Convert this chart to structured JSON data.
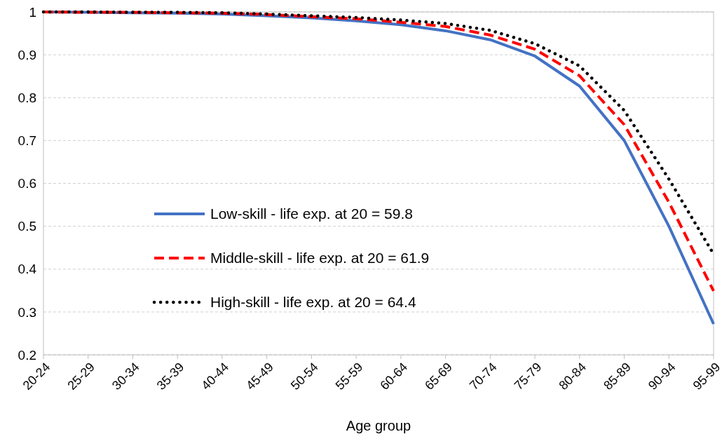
{
  "chart_data": {
    "type": "line",
    "xlabel": "Age group",
    "categories": [
      "20-24",
      "25-29",
      "30-34",
      "35-39",
      "40-44",
      "45-49",
      "50-54",
      "55-59",
      "60-64",
      "65-69",
      "70-74",
      "75-79",
      "80-84",
      "85-89",
      "90-94",
      "95-99"
    ],
    "series": [
      {
        "name": "Low-skill - life exp. at 20 = 59.8",
        "color": "#4472c4",
        "line_style": "solid",
        "values": [
          1,
          0.999,
          0.998,
          0.997,
          0.995,
          0.991,
          0.986,
          0.979,
          0.97,
          0.956,
          0.935,
          0.897,
          0.827,
          0.7,
          0.5,
          0.272
        ]
      },
      {
        "name": "Middle-skill - life exp. at 20 = 61.9",
        "color": "#ff0000",
        "line_style": "dashed",
        "values": [
          1,
          0.999,
          0.999,
          0.998,
          0.997,
          0.994,
          0.989,
          0.984,
          0.976,
          0.966,
          0.946,
          0.913,
          0.851,
          0.737,
          0.556,
          0.349
        ]
      },
      {
        "name": "High-skill - life exp. at 20 = 64.4",
        "color": "#000000",
        "line_style": "dotted",
        "values": [
          1,
          1,
          0.999,
          0.999,
          0.998,
          0.995,
          0.991,
          0.987,
          0.981,
          0.973,
          0.957,
          0.926,
          0.874,
          0.77,
          0.61,
          0.435
        ]
      }
    ],
    "ylim": [
      0.2,
      1
    ],
    "yticks": [
      0.2,
      0.3,
      0.4,
      0.5,
      0.6,
      0.7,
      0.8,
      0.9,
      1
    ],
    "grid": "y",
    "legend": "bottom"
  }
}
